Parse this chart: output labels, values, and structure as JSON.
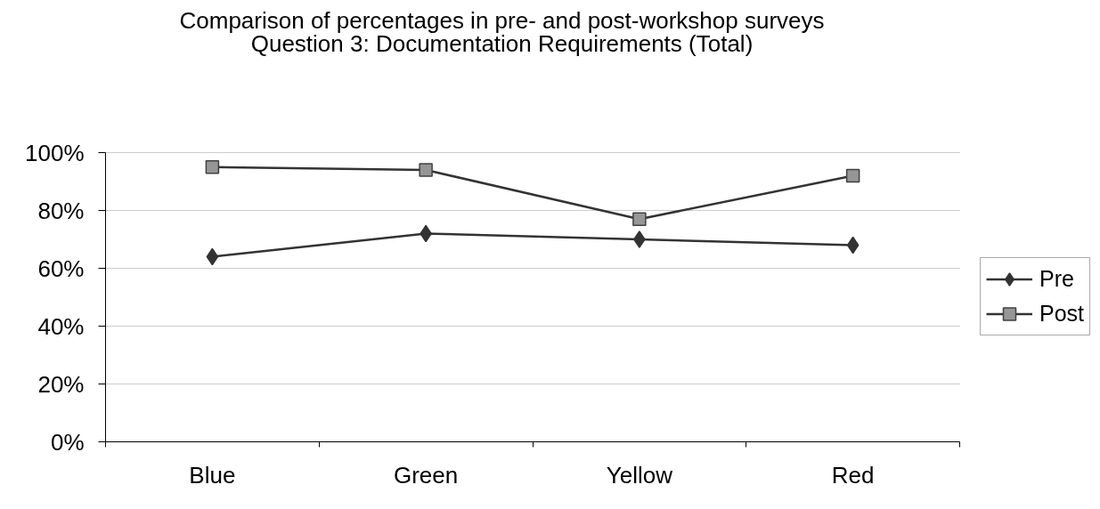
{
  "chart_data": {
    "type": "line",
    "title": "Comparison of percentages in pre- and post-workshop surveys",
    "subtitle": "Question 3: Documentation Requirements (Total)",
    "categories": [
      "Blue",
      "Green",
      "Yellow",
      "Red"
    ],
    "series": [
      {
        "name": "Pre",
        "color": "#333333",
        "marker": "diamond",
        "values": [
          64,
          72,
          70,
          68
        ]
      },
      {
        "name": "Post",
        "color": "#333333",
        "marker": "square",
        "values": [
          95,
          94,
          77,
          92
        ]
      }
    ],
    "ylim": [
      0,
      100
    ],
    "yticks": [
      {
        "value": 0,
        "label": "0%"
      },
      {
        "value": 20,
        "label": "20%"
      },
      {
        "value": 40,
        "label": "40%"
      },
      {
        "value": 60,
        "label": "60%"
      },
      {
        "value": 80,
        "label": "80%"
      },
      {
        "value": 100,
        "label": "100%"
      }
    ],
    "grid": "y",
    "legend": "right",
    "line_style": "solid"
  }
}
